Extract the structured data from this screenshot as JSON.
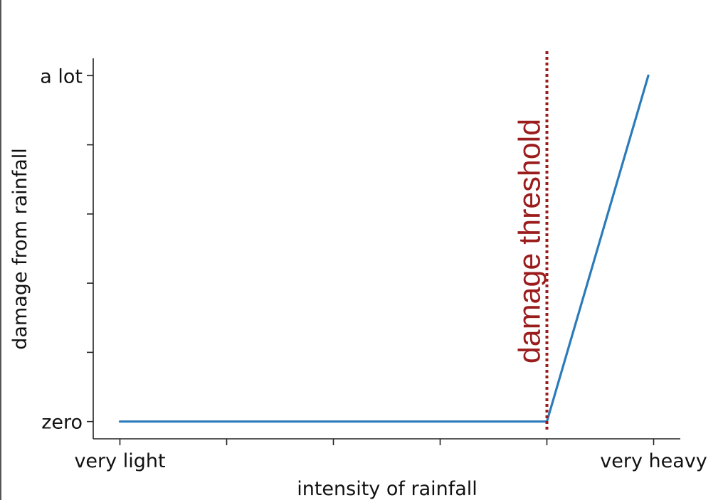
{
  "chart_data": {
    "type": "line",
    "xlabel": "intensity of rainfall",
    "ylabel": "damage from rainfall",
    "xlim": [
      -0.25,
      5.25
    ],
    "ylim": [
      -0.25,
      5.25
    ],
    "x_ticks": [
      0,
      1,
      2,
      3,
      4,
      5
    ],
    "x_tick_labels": [
      "very light",
      "",
      "",
      "",
      "",
      "very heavy"
    ],
    "y_ticks": [
      0,
      1,
      2,
      3,
      4,
      5
    ],
    "y_tick_labels": [
      "zero",
      "",
      "",
      "",
      "",
      "a lot"
    ],
    "series": [
      {
        "x": [
          0,
          4,
          4.95
        ],
        "y": [
          0,
          0,
          5
        ],
        "color": "#2b7bba"
      }
    ],
    "threshold": {
      "x": 4,
      "label": "damage threshold",
      "color": "#9b1c1c"
    },
    "grid": false,
    "spines": [
      "left",
      "bottom"
    ]
  }
}
